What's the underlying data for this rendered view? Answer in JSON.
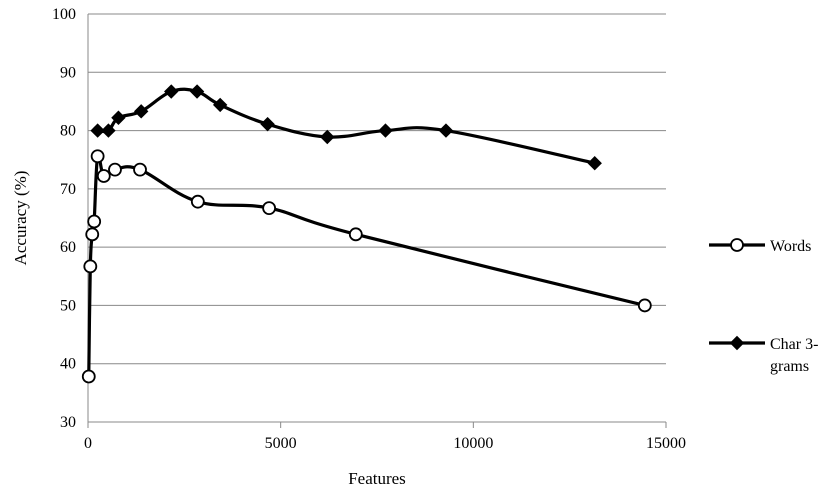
{
  "chart_data": {
    "type": "line",
    "title": "",
    "xlabel": "Features",
    "ylabel": "Accuracy (%)",
    "xlim": [
      0,
      15000
    ],
    "ylim": [
      30,
      100
    ],
    "xticks": [
      0,
      5000,
      10000,
      15000
    ],
    "yticks": [
      30,
      40,
      50,
      60,
      70,
      80,
      90,
      100
    ],
    "grid": "horizontal",
    "legend_position": "right",
    "series": [
      {
        "name": "Words",
        "marker": "open-circle",
        "color": "#000000",
        "x": [
          20,
          60,
          110,
          160,
          250,
          410,
          700,
          1350,
          2850,
          4700,
          6950,
          14450
        ],
        "y": [
          37.8,
          56.7,
          62.2,
          64.4,
          75.6,
          72.2,
          73.3,
          73.3,
          67.8,
          66.7,
          62.2,
          50.0
        ]
      },
      {
        "name": "Char 3-grams",
        "marker": "filled-diamond",
        "color": "#000000",
        "x": [
          250,
          530,
          790,
          1380,
          2160,
          2830,
          3430,
          4660,
          6210,
          7720,
          9290,
          13150
        ],
        "y": [
          80.0,
          80.0,
          82.2,
          83.3,
          86.7,
          86.7,
          84.4,
          81.1,
          78.9,
          80.0,
          80.0,
          74.4
        ]
      }
    ]
  }
}
